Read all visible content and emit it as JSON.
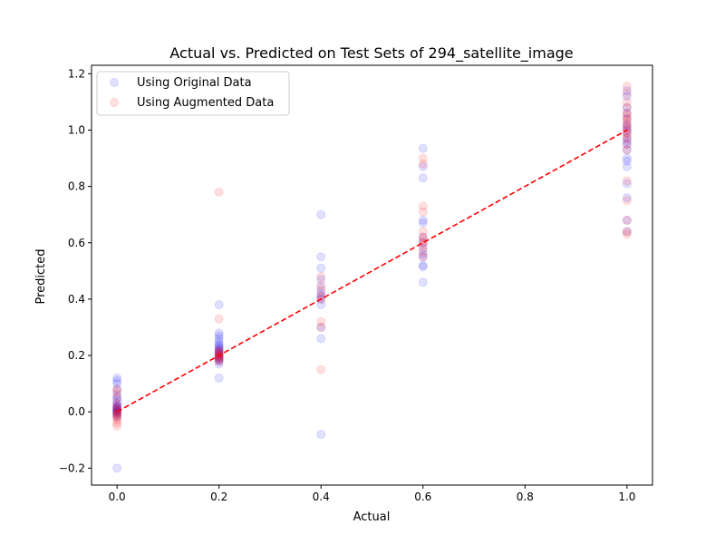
{
  "chart_data": {
    "type": "scatter",
    "title": "Actual vs. Predicted on Test Sets of 294_satellite_image",
    "xlabel": "Actual",
    "ylabel": "Predicted",
    "xlim": [
      -0.05,
      1.05
    ],
    "ylim": [
      -0.26,
      1.23
    ],
    "x_ticks": [
      0.0,
      0.2,
      0.4,
      0.6,
      0.8,
      1.0
    ],
    "x_tick_labels": [
      "0.0",
      "0.2",
      "0.4",
      "0.6",
      "0.8",
      "1.0"
    ],
    "y_ticks": [
      -0.2,
      0.0,
      0.2,
      0.4,
      0.6,
      0.8,
      1.0,
      1.2
    ],
    "y_tick_labels": [
      "−0.2",
      "0.0",
      "0.2",
      "0.4",
      "0.6",
      "0.8",
      "1.0",
      "1.2"
    ],
    "grid": false,
    "legend_position": "top-left",
    "marker_alpha": 0.12,
    "series": [
      {
        "name": "Using Original Data",
        "color": "#0000ff",
        "points": [
          [
            0.0,
            -0.2
          ],
          [
            0.0,
            0.12
          ],
          [
            0.0,
            0.11
          ],
          [
            0.0,
            0.1
          ],
          [
            0.0,
            0.08
          ],
          [
            0.0,
            0.06
          ],
          [
            0.0,
            0.05
          ],
          [
            0.0,
            0.04
          ],
          [
            0.0,
            0.03
          ],
          [
            0.0,
            0.02
          ],
          [
            0.0,
            0.02
          ],
          [
            0.0,
            0.01
          ],
          [
            0.0,
            0.01
          ],
          [
            0.0,
            0.0
          ],
          [
            0.0,
            0.0
          ],
          [
            0.0,
            -0.01
          ],
          [
            0.0,
            -0.02
          ],
          [
            0.0,
            0.015
          ],
          [
            0.0,
            0.005
          ],
          [
            0.0,
            -0.005
          ],
          [
            0.2,
            0.38
          ],
          [
            0.2,
            0.28
          ],
          [
            0.2,
            0.27
          ],
          [
            0.2,
            0.26
          ],
          [
            0.2,
            0.25
          ],
          [
            0.2,
            0.24
          ],
          [
            0.2,
            0.235
          ],
          [
            0.2,
            0.23
          ],
          [
            0.2,
            0.225
          ],
          [
            0.2,
            0.22
          ],
          [
            0.2,
            0.215
          ],
          [
            0.2,
            0.21
          ],
          [
            0.2,
            0.205
          ],
          [
            0.2,
            0.2
          ],
          [
            0.2,
            0.195
          ],
          [
            0.2,
            0.19
          ],
          [
            0.2,
            0.185
          ],
          [
            0.2,
            0.18
          ],
          [
            0.2,
            0.17
          ],
          [
            0.2,
            0.12
          ],
          [
            0.4,
            0.7
          ],
          [
            0.4,
            0.55
          ],
          [
            0.4,
            0.51
          ],
          [
            0.4,
            0.47
          ],
          [
            0.4,
            0.44
          ],
          [
            0.4,
            0.42
          ],
          [
            0.4,
            0.41
          ],
          [
            0.4,
            0.4
          ],
          [
            0.4,
            0.38
          ],
          [
            0.4,
            0.3
          ],
          [
            0.4,
            0.26
          ],
          [
            0.4,
            -0.08
          ],
          [
            0.6,
            0.935
          ],
          [
            0.6,
            0.87
          ],
          [
            0.6,
            0.83
          ],
          [
            0.6,
            0.68
          ],
          [
            0.6,
            0.67
          ],
          [
            0.6,
            0.62
          ],
          [
            0.6,
            0.6
          ],
          [
            0.6,
            0.58
          ],
          [
            0.6,
            0.56
          ],
          [
            0.6,
            0.55
          ],
          [
            0.6,
            0.52
          ],
          [
            0.6,
            0.515
          ],
          [
            0.6,
            0.46
          ],
          [
            1.0,
            1.14
          ],
          [
            1.0,
            1.12
          ],
          [
            1.0,
            1.08
          ],
          [
            1.0,
            1.06
          ],
          [
            1.0,
            1.04
          ],
          [
            1.0,
            1.02
          ],
          [
            1.0,
            1.01
          ],
          [
            1.0,
            1.0
          ],
          [
            1.0,
            0.99
          ],
          [
            1.0,
            0.97
          ],
          [
            1.0,
            0.96
          ],
          [
            1.0,
            0.95
          ],
          [
            1.0,
            0.93
          ],
          [
            1.0,
            0.9
          ],
          [
            1.0,
            0.89
          ],
          [
            1.0,
            0.87
          ],
          [
            1.0,
            0.81
          ],
          [
            1.0,
            0.76
          ],
          [
            1.0,
            0.68
          ],
          [
            1.0,
            0.64
          ]
        ]
      },
      {
        "name": "Using Augmented Data",
        "color": "#ff0000",
        "points": [
          [
            0.0,
            0.08
          ],
          [
            0.0,
            0.07
          ],
          [
            0.0,
            0.05
          ],
          [
            0.0,
            0.03
          ],
          [
            0.0,
            0.02
          ],
          [
            0.0,
            0.01
          ],
          [
            0.0,
            0.005
          ],
          [
            0.0,
            0.0
          ],
          [
            0.0,
            -0.005
          ],
          [
            0.0,
            -0.01
          ],
          [
            0.0,
            -0.015
          ],
          [
            0.0,
            -0.02
          ],
          [
            0.0,
            -0.03
          ],
          [
            0.0,
            -0.04
          ],
          [
            0.0,
            -0.05
          ],
          [
            0.2,
            0.78
          ],
          [
            0.2,
            0.33
          ],
          [
            0.2,
            0.22
          ],
          [
            0.2,
            0.215
          ],
          [
            0.2,
            0.21
          ],
          [
            0.2,
            0.205
          ],
          [
            0.2,
            0.2
          ],
          [
            0.2,
            0.2
          ],
          [
            0.2,
            0.195
          ],
          [
            0.2,
            0.19
          ],
          [
            0.2,
            0.185
          ],
          [
            0.2,
            0.18
          ],
          [
            0.4,
            0.48
          ],
          [
            0.4,
            0.45
          ],
          [
            0.4,
            0.43
          ],
          [
            0.4,
            0.41
          ],
          [
            0.4,
            0.4
          ],
          [
            0.4,
            0.32
          ],
          [
            0.4,
            0.3
          ],
          [
            0.4,
            0.15
          ],
          [
            0.6,
            0.9
          ],
          [
            0.6,
            0.88
          ],
          [
            0.6,
            0.73
          ],
          [
            0.6,
            0.71
          ],
          [
            0.6,
            0.64
          ],
          [
            0.6,
            0.62
          ],
          [
            0.6,
            0.61
          ],
          [
            0.6,
            0.6
          ],
          [
            0.6,
            0.59
          ],
          [
            0.6,
            0.57
          ],
          [
            0.6,
            0.55
          ],
          [
            1.0,
            1.155
          ],
          [
            1.0,
            1.13
          ],
          [
            1.0,
            1.1
          ],
          [
            1.0,
            1.08
          ],
          [
            1.0,
            1.06
          ],
          [
            1.0,
            1.05
          ],
          [
            1.0,
            1.04
          ],
          [
            1.0,
            1.03
          ],
          [
            1.0,
            1.02
          ],
          [
            1.0,
            1.01
          ],
          [
            1.0,
            1.0
          ],
          [
            1.0,
            0.99
          ],
          [
            1.0,
            0.98
          ],
          [
            1.0,
            0.97
          ],
          [
            1.0,
            0.95
          ],
          [
            1.0,
            0.93
          ],
          [
            1.0,
            0.82
          ],
          [
            1.0,
            0.75
          ],
          [
            1.0,
            0.68
          ],
          [
            1.0,
            0.64
          ],
          [
            1.0,
            0.63
          ]
        ]
      }
    ],
    "reference_line": {
      "points": [
        [
          0.0,
          0.0
        ],
        [
          1.0,
          1.0
        ]
      ],
      "color": "#ff0000",
      "style": "dashed"
    }
  }
}
